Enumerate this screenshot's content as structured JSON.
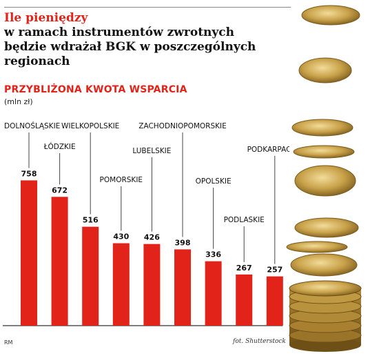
{
  "header": {
    "title_line1": "Ile pieniędzy",
    "title_line2": "w ramach instrumentów zwrotnych",
    "title_line3": "będzie wdrażał BGK w poszczególnych regionach"
  },
  "footer": {
    "left": "RM",
    "right": "fot. Shutterstock"
  },
  "colors": {
    "bar": "#e2231a",
    "accent": "#e2231a",
    "text": "#111111",
    "coin": "#c9a24a"
  },
  "chart_data": {
    "type": "bar",
    "title": "PRZYBLIŻONA KWOTA WSPARCIA",
    "unit": "(mln zł)",
    "categories": [
      "DOLNOŚLĄSKIE",
      "ŁÓDZKIE",
      "WIELKOPOLSKIE",
      "POMORSKIE",
      "LUBELSKIE",
      "ZACHODNIOPOMORSKIE",
      "OPOLSKIE",
      "PODLASKIE",
      "PODKARPACKIE"
    ],
    "values": [
      758,
      672,
      516,
      430,
      426,
      398,
      336,
      267,
      257
    ],
    "data_labels": [
      "758",
      "672",
      "516",
      "430",
      "426",
      "398",
      "336",
      "267",
      "257"
    ],
    "ylim": [
      0,
      800
    ],
    "grid": false,
    "legend": "none"
  }
}
